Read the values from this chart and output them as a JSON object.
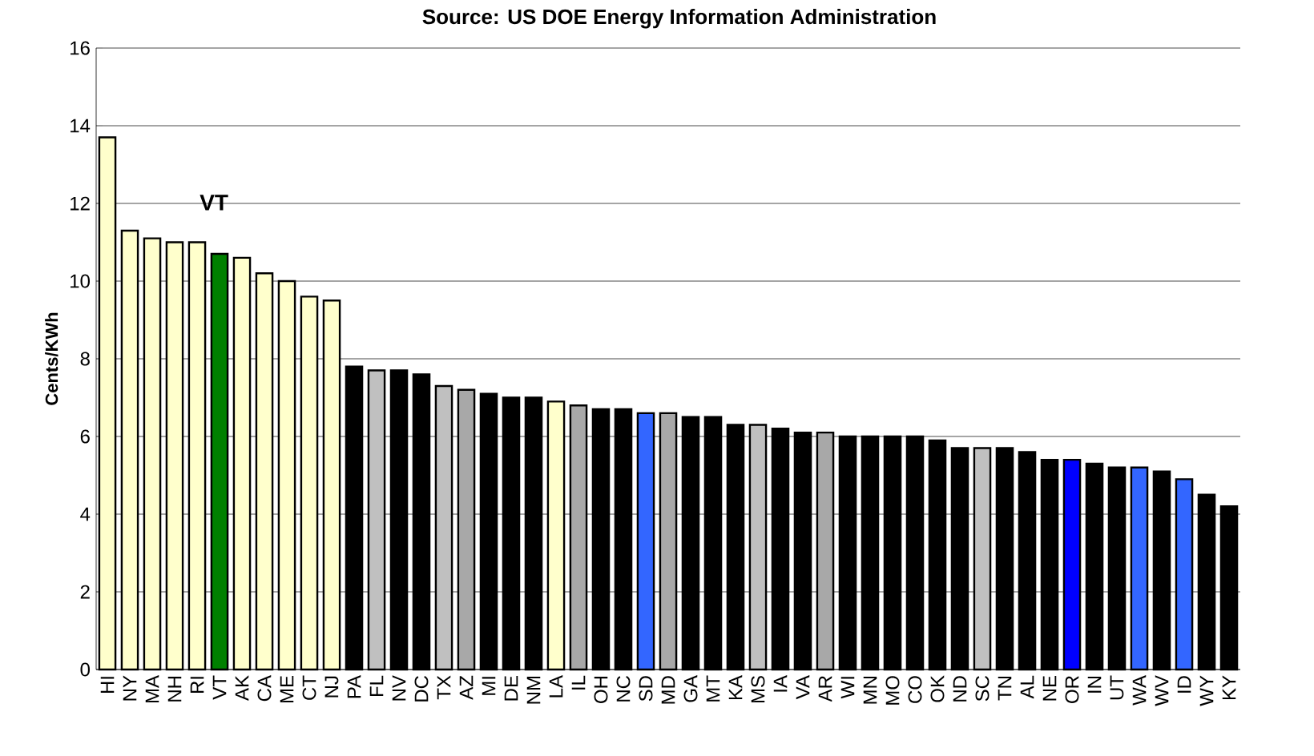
{
  "chart_data": {
    "type": "bar",
    "title": "Source: US DOE Energy Information Administration",
    "ylabel": "Cents/KWh",
    "categories": [
      "HI",
      "NY",
      "MA",
      "NH",
      "RI",
      "VT",
      "AK",
      "CA",
      "ME",
      "CT",
      "NJ",
      "PA",
      "FL",
      "NV",
      "DC",
      "TX",
      "AZ",
      "MI",
      "DE",
      "NM",
      "LA",
      "IL",
      "OH",
      "NC",
      "SD",
      "MD",
      "GA",
      "MT",
      "KA",
      "MS",
      "IA",
      "VA",
      "AR",
      "WI",
      "MN",
      "MO",
      "CO",
      "OK",
      "ND",
      "SC",
      "TN",
      "AL",
      "NE",
      "OR",
      "IN",
      "UT",
      "WA",
      "WV",
      "ID",
      "WY",
      "KY"
    ],
    "values": [
      13.7,
      11.3,
      11.1,
      11.0,
      11.0,
      10.7,
      10.6,
      10.2,
      10.0,
      9.6,
      9.5,
      7.8,
      7.7,
      7.7,
      7.6,
      7.3,
      7.2,
      7.1,
      7.0,
      7.0,
      6.9,
      6.8,
      6.7,
      6.7,
      6.6,
      6.6,
      6.5,
      6.5,
      6.3,
      6.3,
      6.2,
      6.1,
      6.1,
      6.0,
      6.0,
      6.0,
      6.0,
      5.9,
      5.7,
      5.7,
      5.7,
      5.6,
      5.4,
      5.4,
      5.3,
      5.2,
      5.2,
      5.1,
      4.9,
      4.5,
      4.2
    ],
    "colors": [
      "#ffffcc",
      "#ffffcc",
      "#ffffcc",
      "#ffffcc",
      "#ffffcc",
      "#008000",
      "#ffffcc",
      "#ffffcc",
      "#ffffcc",
      "#ffffcc",
      "#ffffcc",
      "#000000",
      "#c0c0c0",
      "#000000",
      "#000000",
      "#c0c0c0",
      "#a8a8a8",
      "#000000",
      "#000000",
      "#000000",
      "#ffffcc",
      "#a8a8a8",
      "#000000",
      "#000000",
      "#3366ff",
      "#a8a8a8",
      "#000000",
      "#000000",
      "#000000",
      "#c0c0c0",
      "#000000",
      "#000000",
      "#a8a8a8",
      "#000000",
      "#000000",
      "#000000",
      "#000000",
      "#000000",
      "#000000",
      "#c0c0c0",
      "#000000",
      "#000000",
      "#000000",
      "#0000ff",
      "#000000",
      "#000000",
      "#3366ff",
      "#000000",
      "#3366ff",
      "#000000",
      "#000000"
    ],
    "ylim": [
      0,
      16
    ],
    "yticks": [
      0,
      2,
      4,
      6,
      8,
      10,
      12,
      14,
      16
    ],
    "grid": "y",
    "annotations": [
      "VT"
    ]
  }
}
